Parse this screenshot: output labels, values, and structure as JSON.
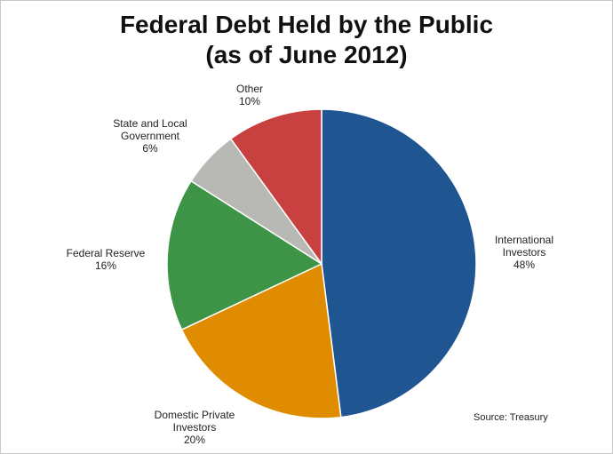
{
  "chart_data": {
    "type": "pie",
    "title": "Federal Debt Held by the Public\n(as of June 2012)",
    "categories": [
      "International\nInvestors",
      "Domestic Private\nInvestors",
      "Federal Reserve",
      "State and Local\nGovernment",
      "Other"
    ],
    "values": [
      48,
      20,
      16,
      6,
      10
    ],
    "value_labels": [
      "48%",
      "20%",
      "16%",
      "6%",
      "10%"
    ],
    "colors": [
      "#1f5591",
      "#e08c00",
      "#3d9447",
      "#b8b8b4",
      "#c94040"
    ],
    "source": "Source: Treasury"
  }
}
